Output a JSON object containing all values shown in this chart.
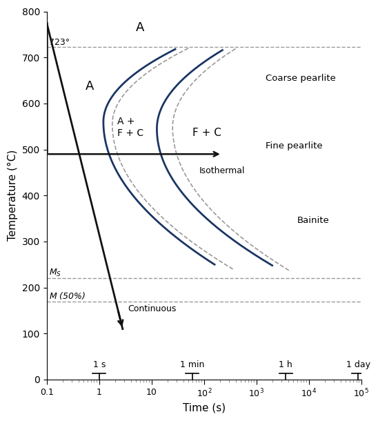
{
  "xlabel": "Time (s)",
  "ylabel": "Temperature (°C)",
  "xlim": [
    0.1,
    100000.0
  ],
  "ylim": [
    0,
    800
  ],
  "yticks": [
    0,
    100,
    200,
    300,
    400,
    500,
    600,
    700,
    800
  ],
  "temp_723": 723,
  "temp_Ms": 220,
  "temp_M50": 170,
  "isothermal_hold_temp": 490,
  "curve_color": "#1a3564",
  "dashed_color": "#999999",
  "arrow_color": "#111111",
  "background_color": "#ffffff",
  "labels": {
    "A_top": "A",
    "A_left": "A",
    "A_plus_FC": "A +\nF + C",
    "FC": "F + C",
    "coarse_pearlite": "Coarse pearlite",
    "fine_pearlite": "Fine pearlite",
    "bainite": "Bainite",
    "isothermal": "Isothermal",
    "continuous": "Continuous",
    "Ms": "$M_S$",
    "M50": "$M$ (50%)",
    "temp_label": "723°"
  },
  "time_labels": [
    {
      "t": 1,
      "label": "1 s"
    },
    {
      "t": 60,
      "label": "1 min"
    },
    {
      "t": 3600,
      "label": "1 h"
    },
    {
      "t": 86400,
      "label": "1 day"
    }
  ],
  "xtick_major": [
    0.1,
    1,
    10,
    100,
    1000,
    10000,
    100000
  ],
  "xtick_labels": [
    "0.1",
    "1",
    "10",
    "10$^2$",
    "10$^3$",
    "10$^4$",
    "10$^5$"
  ]
}
